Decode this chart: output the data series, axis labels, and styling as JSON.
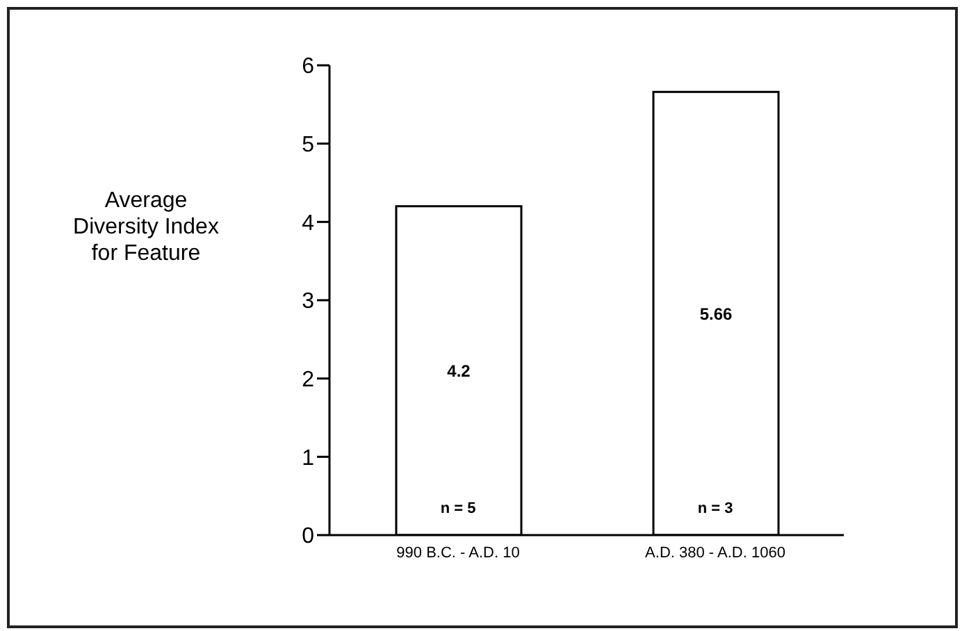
{
  "chart_data": {
    "type": "bar",
    "ylabel": "Average Diversity Index for Feature",
    "categories": [
      "990 B.C. - A.D. 10",
      "A.D. 380 - A.D. 1060"
    ],
    "values": [
      4.2,
      5.66
    ],
    "color": "#ffffff",
    "data_labels": true,
    "ylim": [
      0,
      6
    ],
    "yticks": [
      0,
      1,
      2,
      3,
      4,
      5,
      6
    ],
    "grid": false,
    "legend": false,
    "annotations": [
      "n = 5",
      "n = 3"
    ]
  }
}
